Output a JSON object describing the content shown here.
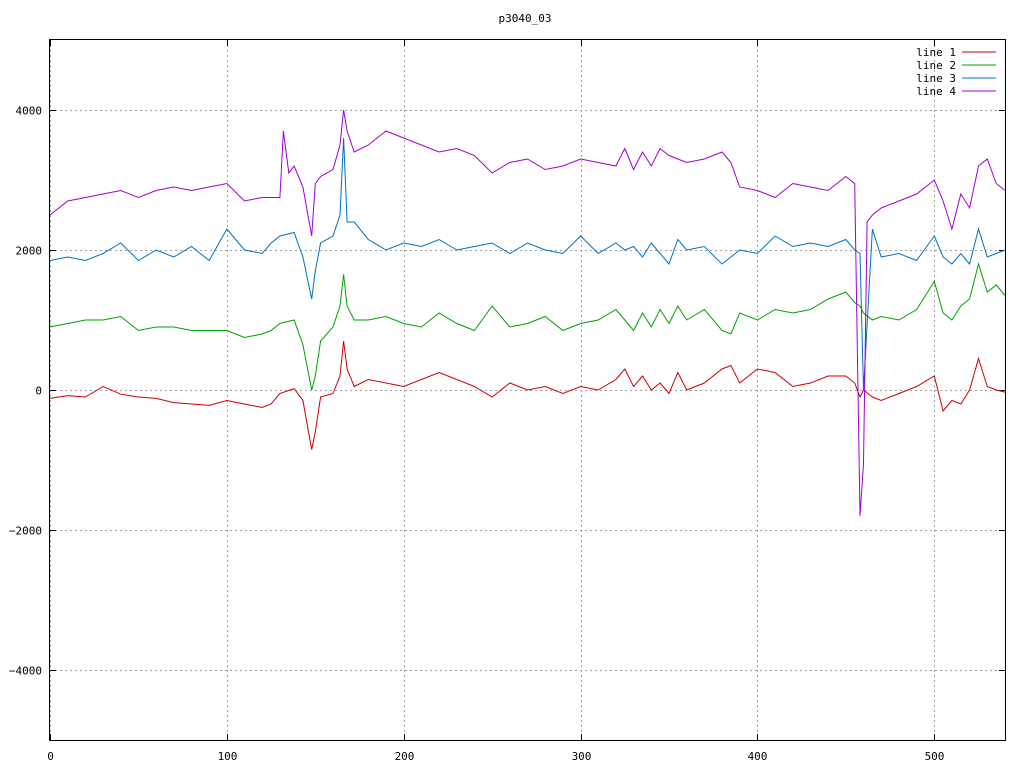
{
  "chart_data": {
    "type": "line",
    "title": "p3040_03",
    "xlabel": "",
    "ylabel": "",
    "xlim": [
      0,
      540
    ],
    "ylim": [
      -5000,
      5000
    ],
    "xticks": [
      0,
      100,
      200,
      300,
      400,
      500
    ],
    "yticks": [
      -4000,
      -2000,
      0,
      2000,
      4000
    ],
    "xtick_labels": [
      "0",
      "100",
      "200",
      "300",
      "400",
      "500"
    ],
    "ytick_labels": [
      "−4000",
      "−2000",
      "0",
      "2000",
      "4000"
    ],
    "grid": true,
    "legend_position": "top-right",
    "series": [
      {
        "name": "line 1",
        "color": "#cc0000",
        "x": [
          0,
          10,
          20,
          30,
          40,
          50,
          60,
          70,
          80,
          90,
          100,
          110,
          120,
          125,
          130,
          138,
          143,
          148,
          150,
          153,
          160,
          164,
          166,
          168,
          172,
          180,
          190,
          200,
          210,
          220,
          230,
          240,
          250,
          260,
          270,
          280,
          290,
          300,
          310,
          320,
          325,
          330,
          335,
          340,
          345,
          350,
          355,
          360,
          370,
          380,
          385,
          390,
          400,
          410,
          420,
          430,
          440,
          450,
          455,
          458,
          460,
          465,
          470,
          480,
          490,
          500,
          505,
          510,
          515,
          520,
          525,
          530,
          535,
          540
        ],
        "y": [
          -120,
          -80,
          -100,
          50,
          -60,
          -100,
          -120,
          -180,
          -200,
          -220,
          -150,
          -200,
          -250,
          -200,
          -50,
          20,
          -150,
          -850,
          -600,
          -100,
          -50,
          200,
          700,
          300,
          50,
          150,
          100,
          50,
          150,
          250,
          150,
          50,
          -100,
          100,
          0,
          50,
          -50,
          50,
          0,
          150,
          300,
          50,
          200,
          0,
          100,
          -50,
          250,
          0,
          100,
          300,
          350,
          100,
          300,
          250,
          50,
          100,
          200,
          200,
          100,
          -100,
          0,
          -100,
          -150,
          -50,
          50,
          200,
          -300,
          -150,
          -200,
          0,
          450,
          50,
          0,
          -30
        ]
      },
      {
        "name": "line 2",
        "color": "#00a000",
        "x": [
          0,
          10,
          20,
          30,
          40,
          50,
          60,
          70,
          80,
          90,
          100,
          110,
          120,
          125,
          130,
          138,
          143,
          148,
          150,
          153,
          160,
          164,
          166,
          168,
          172,
          180,
          190,
          200,
          210,
          220,
          230,
          240,
          250,
          260,
          270,
          280,
          290,
          300,
          310,
          320,
          325,
          330,
          335,
          340,
          345,
          350,
          355,
          360,
          370,
          380,
          385,
          390,
          400,
          410,
          420,
          430,
          440,
          450,
          455,
          458,
          460,
          465,
          470,
          480,
          490,
          500,
          505,
          510,
          515,
          520,
          525,
          530,
          535,
          540
        ],
        "y": [
          900,
          950,
          1000,
          1000,
          1050,
          850,
          900,
          900,
          850,
          850,
          850,
          750,
          800,
          850,
          950,
          1000,
          650,
          0,
          200,
          700,
          900,
          1200,
          1650,
          1200,
          1000,
          1000,
          1050,
          950,
          900,
          1100,
          950,
          850,
          1200,
          900,
          950,
          1050,
          850,
          950,
          1000,
          1150,
          1000,
          850,
          1100,
          900,
          1150,
          950,
          1200,
          1000,
          1150,
          850,
          800,
          1100,
          1000,
          1150,
          1100,
          1150,
          1300,
          1400,
          1250,
          1200,
          1100,
          1000,
          1050,
          1000,
          1150,
          1550,
          1100,
          1000,
          1200,
          1300,
          1800,
          1400,
          1500,
          1350
        ]
      },
      {
        "name": "line 3",
        "color": "#0070c0",
        "x": [
          0,
          10,
          20,
          30,
          40,
          50,
          60,
          70,
          80,
          90,
          100,
          110,
          120,
          125,
          130,
          138,
          143,
          148,
          150,
          153,
          160,
          164,
          166,
          168,
          172,
          180,
          190,
          200,
          210,
          220,
          230,
          240,
          250,
          260,
          270,
          280,
          290,
          300,
          310,
          320,
          325,
          330,
          335,
          340,
          345,
          350,
          355,
          360,
          370,
          380,
          385,
          390,
          400,
          410,
          420,
          430,
          440,
          450,
          455,
          458,
          460,
          465,
          470,
          480,
          490,
          500,
          505,
          510,
          515,
          520,
          525,
          530,
          535,
          540
        ],
        "y": [
          1850,
          1900,
          1850,
          1950,
          2100,
          1850,
          2000,
          1900,
          2050,
          1850,
          2300,
          2000,
          1950,
          2100,
          2200,
          2250,
          1900,
          1300,
          1700,
          2100,
          2200,
          2500,
          3600,
          2400,
          2400,
          2150,
          2000,
          2100,
          2050,
          2150,
          2000,
          2050,
          2100,
          1950,
          2100,
          2000,
          1950,
          2200,
          1950,
          2100,
          2000,
          2050,
          1900,
          2100,
          1950,
          1800,
          2150,
          2000,
          2050,
          1800,
          1900,
          2000,
          1950,
          2200,
          2050,
          2100,
          2050,
          2150,
          2000,
          1950,
          0,
          2300,
          1900,
          1950,
          1850,
          2200,
          1900,
          1800,
          1950,
          1800,
          2300,
          1900,
          1950,
          2000
        ]
      },
      {
        "name": "line 4",
        "color": "#a000d0",
        "x": [
          0,
          10,
          20,
          30,
          40,
          50,
          60,
          70,
          80,
          90,
          100,
          110,
          120,
          125,
          130,
          132,
          135,
          138,
          143,
          148,
          150,
          153,
          160,
          164,
          166,
          168,
          172,
          180,
          190,
          200,
          210,
          220,
          230,
          240,
          250,
          260,
          270,
          280,
          290,
          300,
          310,
          320,
          325,
          330,
          335,
          340,
          345,
          350,
          355,
          360,
          370,
          380,
          385,
          390,
          400,
          410,
          420,
          430,
          440,
          450,
          455,
          458,
          460,
          462,
          465,
          470,
          480,
          490,
          500,
          505,
          510,
          515,
          520,
          525,
          530,
          535,
          540
        ],
        "y": [
          2500,
          2700,
          2750,
          2800,
          2850,
          2750,
          2850,
          2900,
          2850,
          2900,
          2950,
          2700,
          2750,
          2750,
          2750,
          3700,
          3100,
          3200,
          2900,
          2200,
          2950,
          3050,
          3150,
          3500,
          4000,
          3700,
          3400,
          3500,
          3700,
          3600,
          3500,
          3400,
          3450,
          3350,
          3100,
          3250,
          3300,
          3150,
          3200,
          3300,
          3250,
          3200,
          3450,
          3150,
          3400,
          3200,
          3450,
          3350,
          3300,
          3250,
          3300,
          3400,
          3250,
          2900,
          2850,
          2750,
          2950,
          2900,
          2850,
          3050,
          2950,
          -1800,
          -1050,
          2400,
          2500,
          2600,
          2700,
          2800,
          3000,
          2700,
          2300,
          2800,
          2600,
          3200,
          3300,
          2950,
          2850
        ]
      }
    ]
  }
}
